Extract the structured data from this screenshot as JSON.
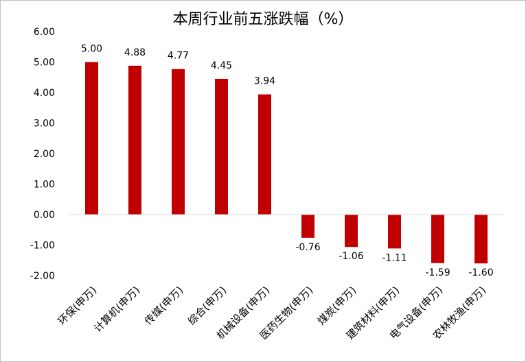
{
  "chart_data": {
    "type": "bar",
    "title": "本周行业前五涨跌幅（%）",
    "categories": [
      "环保(申万)",
      "计算机(申万)",
      "传媒(申万)",
      "综合(申万)",
      "机械设备(申万)",
      "医药生物(申万)",
      "煤炭(申万)",
      "建筑材料(申万)",
      "电气设备(申万)",
      "农林牧渔(申万)"
    ],
    "values": [
      5.0,
      4.88,
      4.77,
      4.45,
      3.94,
      -0.76,
      -1.06,
      -1.11,
      -1.59,
      -1.6
    ],
    "data_labels": [
      "5.00",
      "4.88",
      "4.77",
      "4.45",
      "3.94",
      "-0.76",
      "-1.06",
      "-1.11",
      "-1.59",
      "-1.60"
    ],
    "y_ticks": [
      "6.00",
      "5.00",
      "4.00",
      "3.00",
      "2.00",
      "1.00",
      "0.00",
      "-1.00",
      "-2.00"
    ],
    "ylim": [
      -2,
      6
    ],
    "bar_color": "#C00000",
    "grid": false,
    "legend": "none"
  }
}
